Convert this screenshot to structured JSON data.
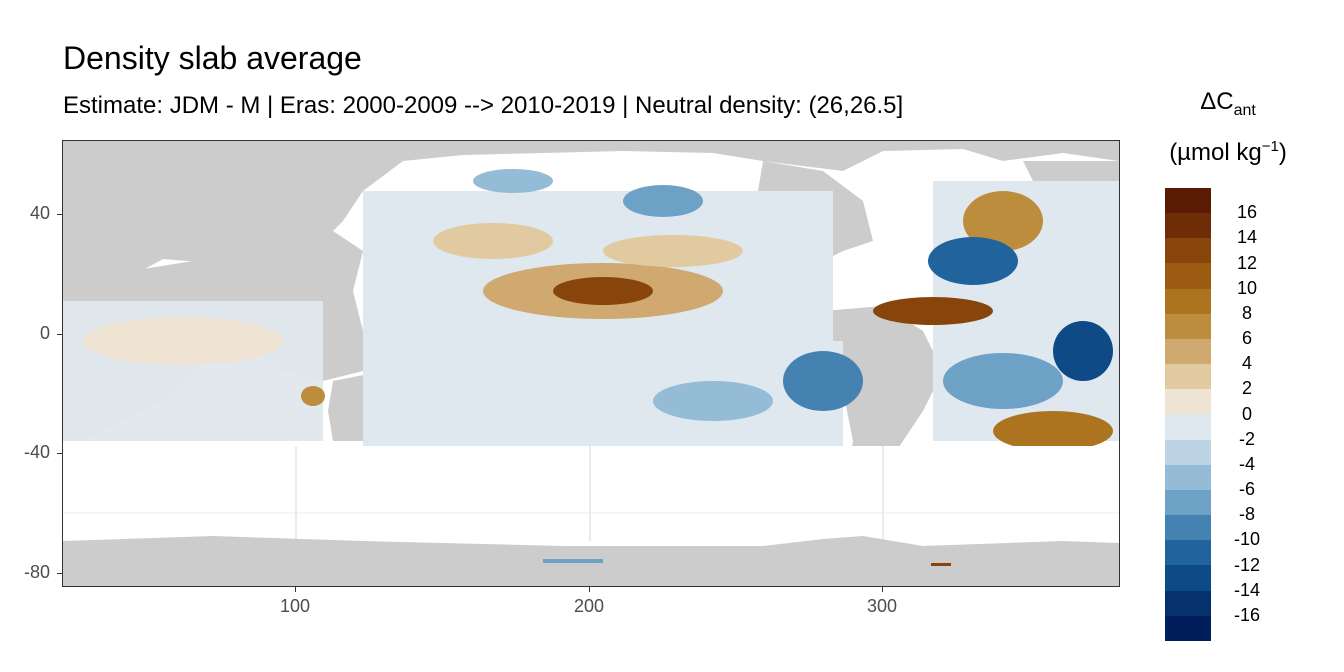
{
  "title": "Density slab average",
  "subtitle": "Estimate: JDM - M | Eras: 2000-2009 --> 2010-2019 | Neutral density: (26,26.5]",
  "axes": {
    "x_ticks": [
      "100",
      "200",
      "300"
    ],
    "y_ticks": [
      "40",
      "0",
      "-40",
      "-80"
    ]
  },
  "legend": {
    "title_line1": "ΔC",
    "title_sub": "ant",
    "title_line2_a": "(µmol kg",
    "title_line2_sup": "−1",
    "title_line2_b": ")",
    "labels": [
      "16",
      "14",
      "12",
      "10",
      "8",
      "6",
      "4",
      "2",
      "0",
      "-2",
      "-4",
      "-6",
      "-8",
      "-10",
      "-12",
      "-14",
      "-16"
    ],
    "colors": [
      "#5a1a04",
      "#6f2d07",
      "#87450c",
      "#9b5b10",
      "#ad7420",
      "#bd8d3e",
      "#cfa970",
      "#e1c9a0",
      "#efe4d4",
      "#dfe8ee",
      "#bcd3e3",
      "#95bcd6",
      "#6ea1c6",
      "#4482b2",
      "#21639c",
      "#0d4a86",
      "#05326d",
      "#001f5a"
    ]
  },
  "colors": {
    "land": "#cccccc",
    "ocean_neutral": "#dfe8ee",
    "panel_border": "#333333",
    "grid": "#ebebeb"
  }
}
